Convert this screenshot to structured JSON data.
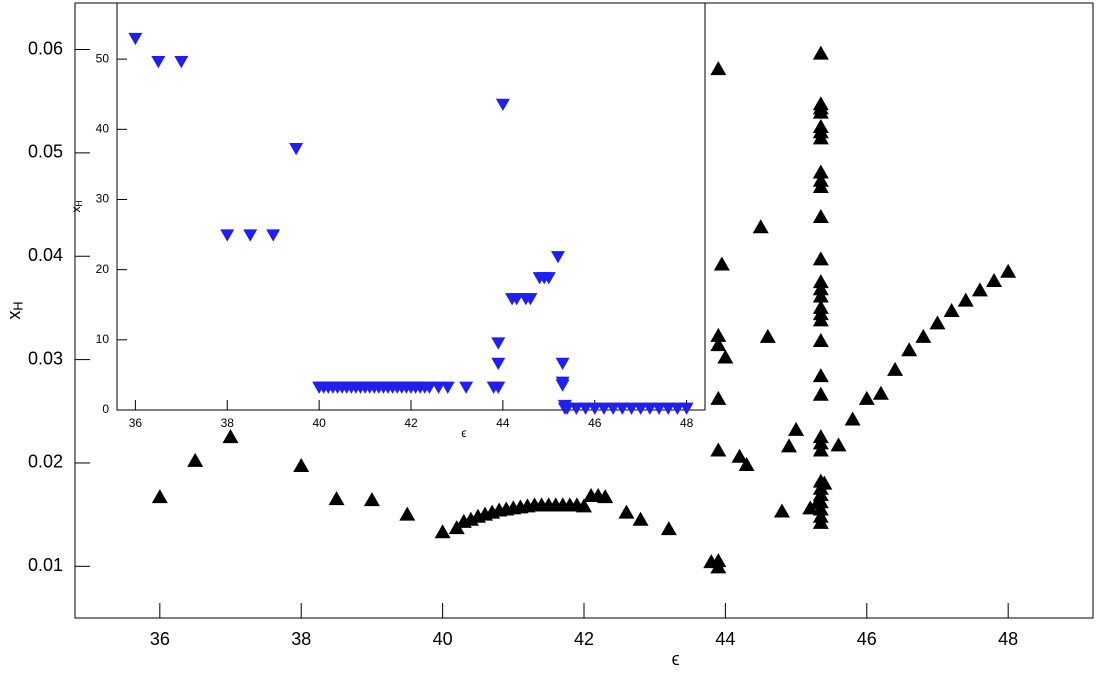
{
  "chart_data": [
    {
      "type": "scatter",
      "x_label": "ϵ",
      "y_label": "x",
      "y_label_sub": "H",
      "xlim": [
        34.8,
        49.2
      ],
      "ylim": [
        0.005,
        0.0645
      ],
      "xticks": [
        36,
        38,
        40,
        42,
        44,
        46,
        48
      ],
      "yticks": [
        0.01,
        0.02,
        0.03,
        0.04,
        0.05,
        0.06
      ],
      "marker": "triangle-up",
      "color": "#000000",
      "x": [
        36.0,
        36.5,
        37.0,
        38.0,
        38.5,
        39.0,
        39.5,
        40.0,
        40.2,
        40.3,
        40.4,
        40.5,
        40.6,
        40.7,
        40.8,
        40.9,
        41.0,
        41.1,
        41.2,
        41.3,
        41.4,
        41.5,
        41.6,
        41.7,
        41.8,
        41.9,
        42.0,
        42.1,
        42.2,
        42.3,
        42.6,
        42.8,
        43.2,
        43.8,
        43.9,
        43.9,
        43.9,
        43.95,
        43.9,
        43.9,
        44.0,
        43.9,
        43.9,
        44.2,
        44.3,
        44.5,
        44.6,
        44.8,
        44.9,
        45.0,
        45.2,
        45.3,
        45.35,
        45.35,
        45.35,
        45.35,
        45.35,
        45.35,
        45.35,
        45.35,
        45.35,
        45.35,
        45.35,
        45.35,
        45.35,
        45.35,
        45.35,
        45.35,
        45.35,
        45.35,
        45.35,
        45.35,
        45.35,
        45.35,
        45.35,
        45.35,
        45.35,
        45.35,
        45.35,
        45.35,
        45.35,
        45.35,
        45.35,
        45.4,
        45.6,
        45.8,
        46.0,
        46.2,
        46.4,
        46.6,
        46.8,
        47.0,
        47.2,
        47.4,
        47.6,
        47.8,
        48.0
      ],
      "values": [
        0.0167,
        0.0202,
        0.0225,
        0.0197,
        0.0165,
        0.0164,
        0.015,
        0.0133,
        0.0137,
        0.0143,
        0.0145,
        0.0148,
        0.015,
        0.0152,
        0.0154,
        0.0155,
        0.0156,
        0.0157,
        0.0158,
        0.0159,
        0.0159,
        0.0159,
        0.0159,
        0.0159,
        0.0159,
        0.0159,
        0.0158,
        0.0168,
        0.0168,
        0.0167,
        0.0152,
        0.0145,
        0.0136,
        0.0104,
        0.0105,
        0.0099,
        0.0581,
        0.0392,
        0.0323,
        0.0314,
        0.0302,
        0.0262,
        0.0212,
        0.0206,
        0.0198,
        0.0428,
        0.0322,
        0.0153,
        0.0216,
        0.0232,
        0.0156,
        0.0161,
        0.0596,
        0.0547,
        0.0543,
        0.0539,
        0.0525,
        0.052,
        0.0514,
        0.0481,
        0.0473,
        0.0467,
        0.0438,
        0.0397,
        0.0375,
        0.0368,
        0.0361,
        0.035,
        0.0344,
        0.0338,
        0.0318,
        0.0284,
        0.0266,
        0.0225,
        0.0219,
        0.0212,
        0.0182,
        0.0175,
        0.0169,
        0.0162,
        0.0155,
        0.0148,
        0.0142,
        0.018,
        0.0217,
        0.0242,
        0.0262,
        0.0267,
        0.029,
        0.0309,
        0.0322,
        0.0335,
        0.0347,
        0.0357,
        0.0367,
        0.0376,
        0.0385
      ]
    },
    {
      "type": "scatter",
      "x_label": "ϵ",
      "y_label": "x",
      "y_label_sub": "H",
      "xlim": [
        35.6,
        48.4
      ],
      "ylim": [
        0,
        58
      ],
      "xticks": [
        36,
        38,
        40,
        42,
        44,
        46,
        48
      ],
      "yticks": [
        0,
        10,
        20,
        30,
        40,
        50
      ],
      "marker": "triangle-down",
      "color": "#1f1fee",
      "x": [
        36.0,
        36.5,
        37.0,
        38.0,
        38.5,
        39.0,
        39.5,
        40.0,
        40.1,
        40.2,
        40.3,
        40.4,
        40.5,
        40.6,
        40.7,
        40.8,
        40.9,
        41.0,
        41.1,
        41.2,
        41.3,
        41.4,
        41.5,
        41.6,
        41.7,
        41.8,
        41.9,
        42.0,
        42.1,
        42.2,
        42.3,
        42.4,
        42.6,
        42.8,
        43.2,
        43.8,
        43.9,
        43.9,
        43.9,
        44.0,
        44.2,
        44.3,
        44.5,
        44.6,
        44.8,
        44.9,
        45.0,
        45.2,
        45.3,
        45.3,
        45.3,
        45.35,
        45.35,
        45.4,
        45.6,
        45.8,
        46.0,
        46.2,
        46.4,
        46.6,
        46.8,
        47.0,
        47.2,
        47.4,
        47.6,
        47.8,
        48.0
      ],
      "values": [
        53,
        49.7,
        49.7,
        25,
        25,
        25,
        37.3,
        3.3,
        3.3,
        3.3,
        3.3,
        3.3,
        3.3,
        3.3,
        3.3,
        3.3,
        3.3,
        3.3,
        3.3,
        3.3,
        3.3,
        3.3,
        3.3,
        3.3,
        3.3,
        3.3,
        3.3,
        3.3,
        3.3,
        3.3,
        3.3,
        3.3,
        3.3,
        3.3,
        3.3,
        3.3,
        3.3,
        6.7,
        9.6,
        43.6,
        15.9,
        15.9,
        15.9,
        15.9,
        18.9,
        18.9,
        18.9,
        21.9,
        6.7,
        4,
        3.6,
        0.7,
        0.3,
        0.3,
        0.3,
        0.3,
        0.3,
        0.3,
        0.3,
        0.3,
        0.3,
        0.3,
        0.3,
        0.3,
        0.3,
        0.3,
        0.3
      ]
    }
  ]
}
